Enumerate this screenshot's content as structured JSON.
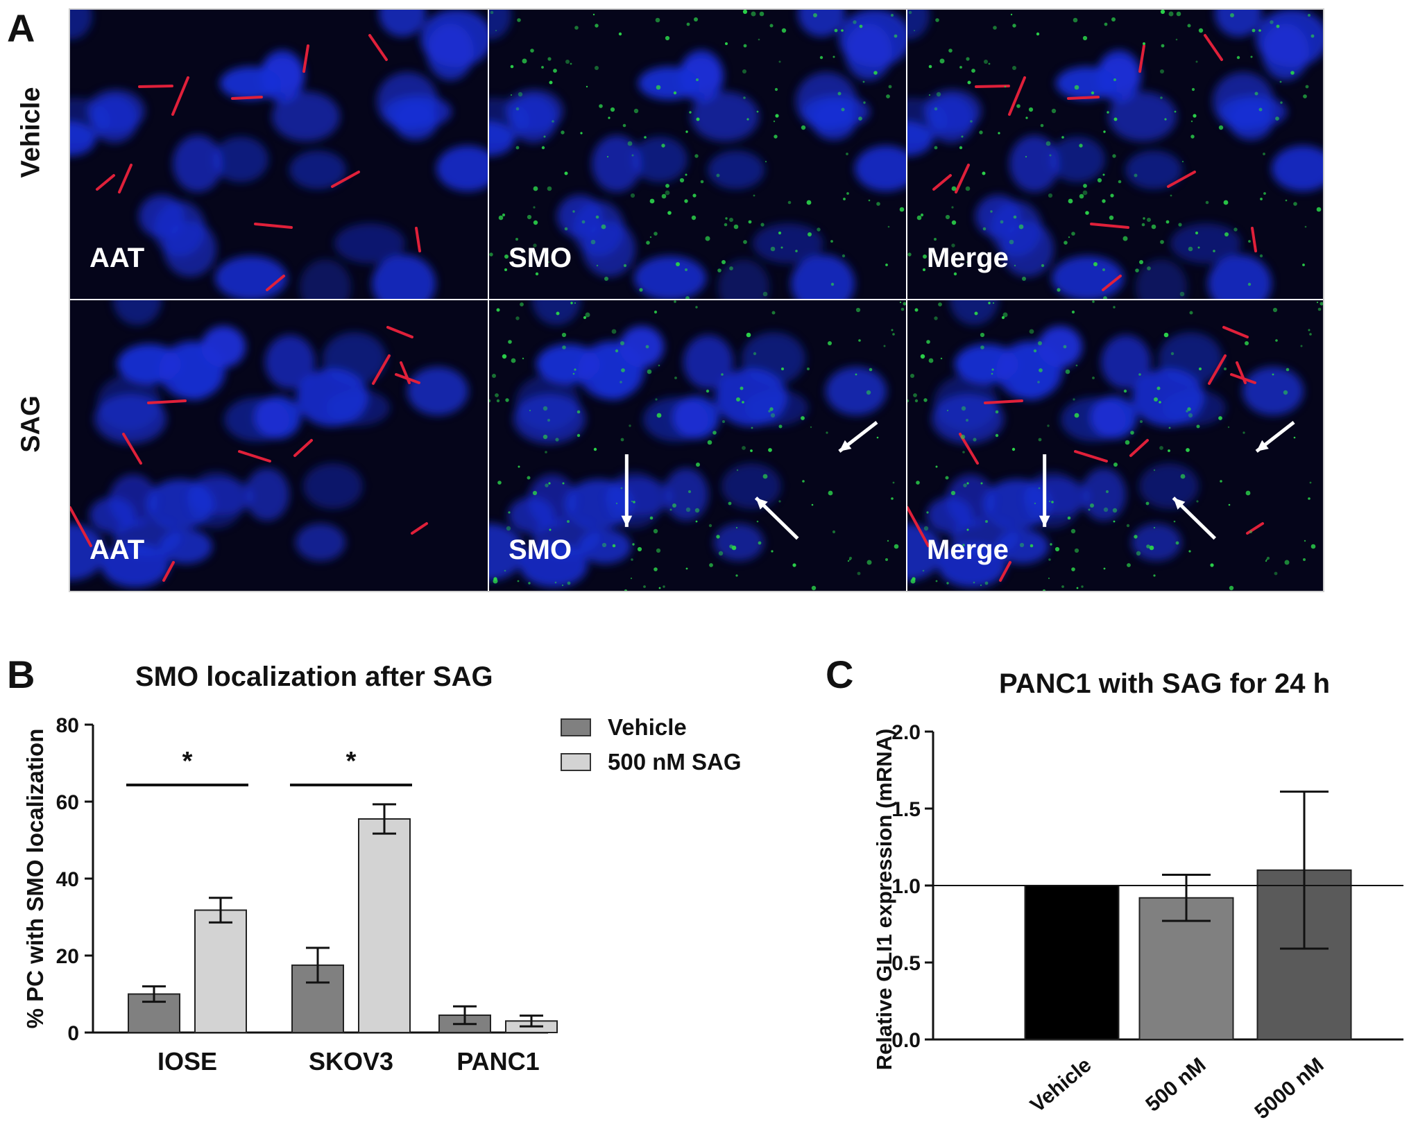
{
  "panel_a": {
    "letter": "A",
    "rows": [
      {
        "label": "Vehicle",
        "tiles": [
          "AAT",
          "SMO",
          "Merge"
        ]
      },
      {
        "label": "SAG",
        "tiles": [
          "AAT",
          "SMO",
          "Merge"
        ]
      }
    ],
    "colors": {
      "nuclei": "#1a2fd6",
      "cilia": "#e0203a",
      "smo": "#2bd14a",
      "background": "#05051a"
    }
  },
  "panel_b": {
    "letter": "B",
    "legend": [
      "Vehicle",
      "500 nM SAG"
    ],
    "significance": [
      "*",
      "*"
    ]
  },
  "panel_c": {
    "letter": "C"
  },
  "chart_data": [
    {
      "type": "bar",
      "title": "SMO localization after SAG",
      "xlabel": "",
      "ylabel": "% PC with SMO localization",
      "categories": [
        "IOSE",
        "SKOV3",
        "PANC1"
      ],
      "series": [
        {
          "name": "Vehicle",
          "color": "#808080",
          "values": [
            10,
            17.5,
            4.5
          ],
          "errors": [
            2,
            4.5,
            2.3
          ]
        },
        {
          "name": "500 nM SAG",
          "color": "#d3d3d3",
          "values": [
            31.8,
            55.5,
            3
          ],
          "errors": [
            3.2,
            3.8,
            1.4
          ]
        }
      ],
      "ylim": [
        0,
        80
      ],
      "yticks": [
        0,
        20,
        40,
        60,
        80
      ],
      "annotations": [
        {
          "text": "*",
          "category": "IOSE"
        },
        {
          "text": "*",
          "category": "SKOV3"
        }
      ],
      "legend_position": "top-right"
    },
    {
      "type": "bar",
      "title": "PANC1 with SAG for 24 h",
      "xlabel": "",
      "ylabel": "Relative GLI1 expression (mRNA)",
      "categories": [
        "Vehicle",
        "500 nM",
        "5000 nM"
      ],
      "values": [
        1.0,
        0.92,
        1.1
      ],
      "errors": [
        0,
        0.15,
        0.51
      ],
      "colors": [
        "#000000",
        "#808080",
        "#5a5a5a"
      ],
      "reference_line": 1.0,
      "ylim": [
        0,
        2.0
      ],
      "yticks": [
        "0.0",
        "0.5",
        "1.0",
        "1.5",
        "2.0"
      ]
    }
  ]
}
